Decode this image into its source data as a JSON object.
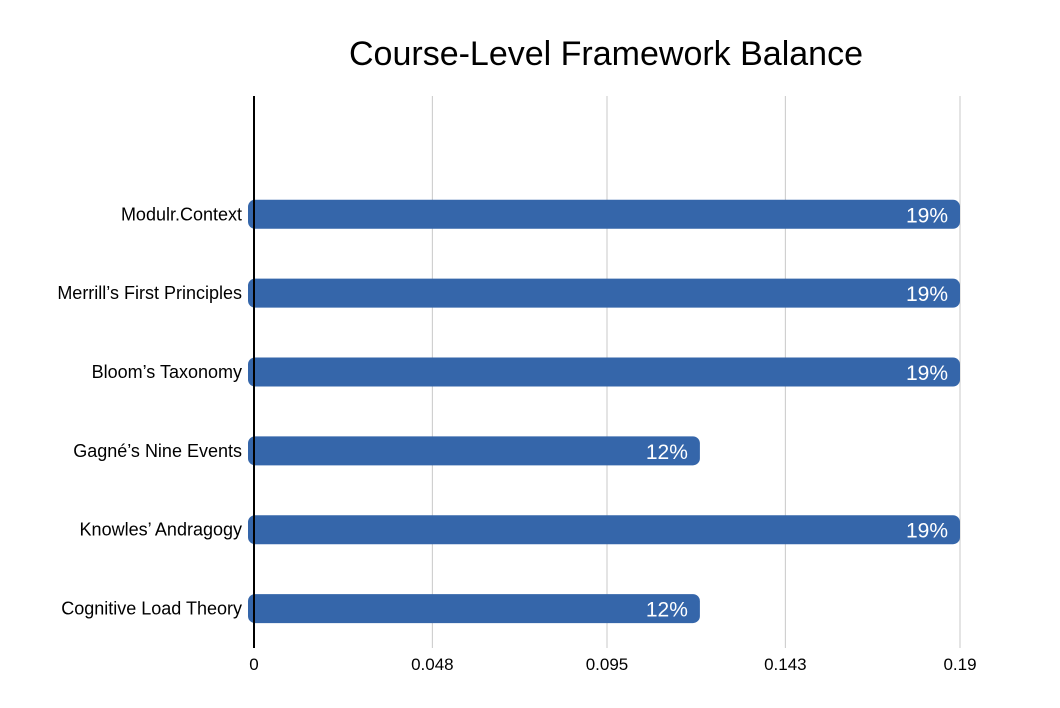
{
  "chart_data": {
    "type": "bar",
    "orientation": "horizontal",
    "title": "Course-Level Framework Balance",
    "categories": [
      "Modulr.Context",
      "Merrill’s First Principles",
      "Bloom’s Taxonomy",
      "Gagné’s Nine Events",
      "Knowles’ Andragogy",
      "Cognitive Load Theory"
    ],
    "values": [
      0.19,
      0.19,
      0.19,
      0.12,
      0.19,
      0.12
    ],
    "data_labels": [
      "19%",
      "19%",
      "19%",
      "12%",
      "19%",
      "12%"
    ],
    "xlim": [
      0,
      0.19
    ],
    "xticks": [
      0,
      0.048,
      0.095,
      0.143,
      0.19
    ],
    "xtick_labels": [
      "0",
      "0.048",
      "0.095",
      "0.143",
      "0.19"
    ],
    "grid": "vertical",
    "bar_color": "#3566AA",
    "legend": "none"
  }
}
